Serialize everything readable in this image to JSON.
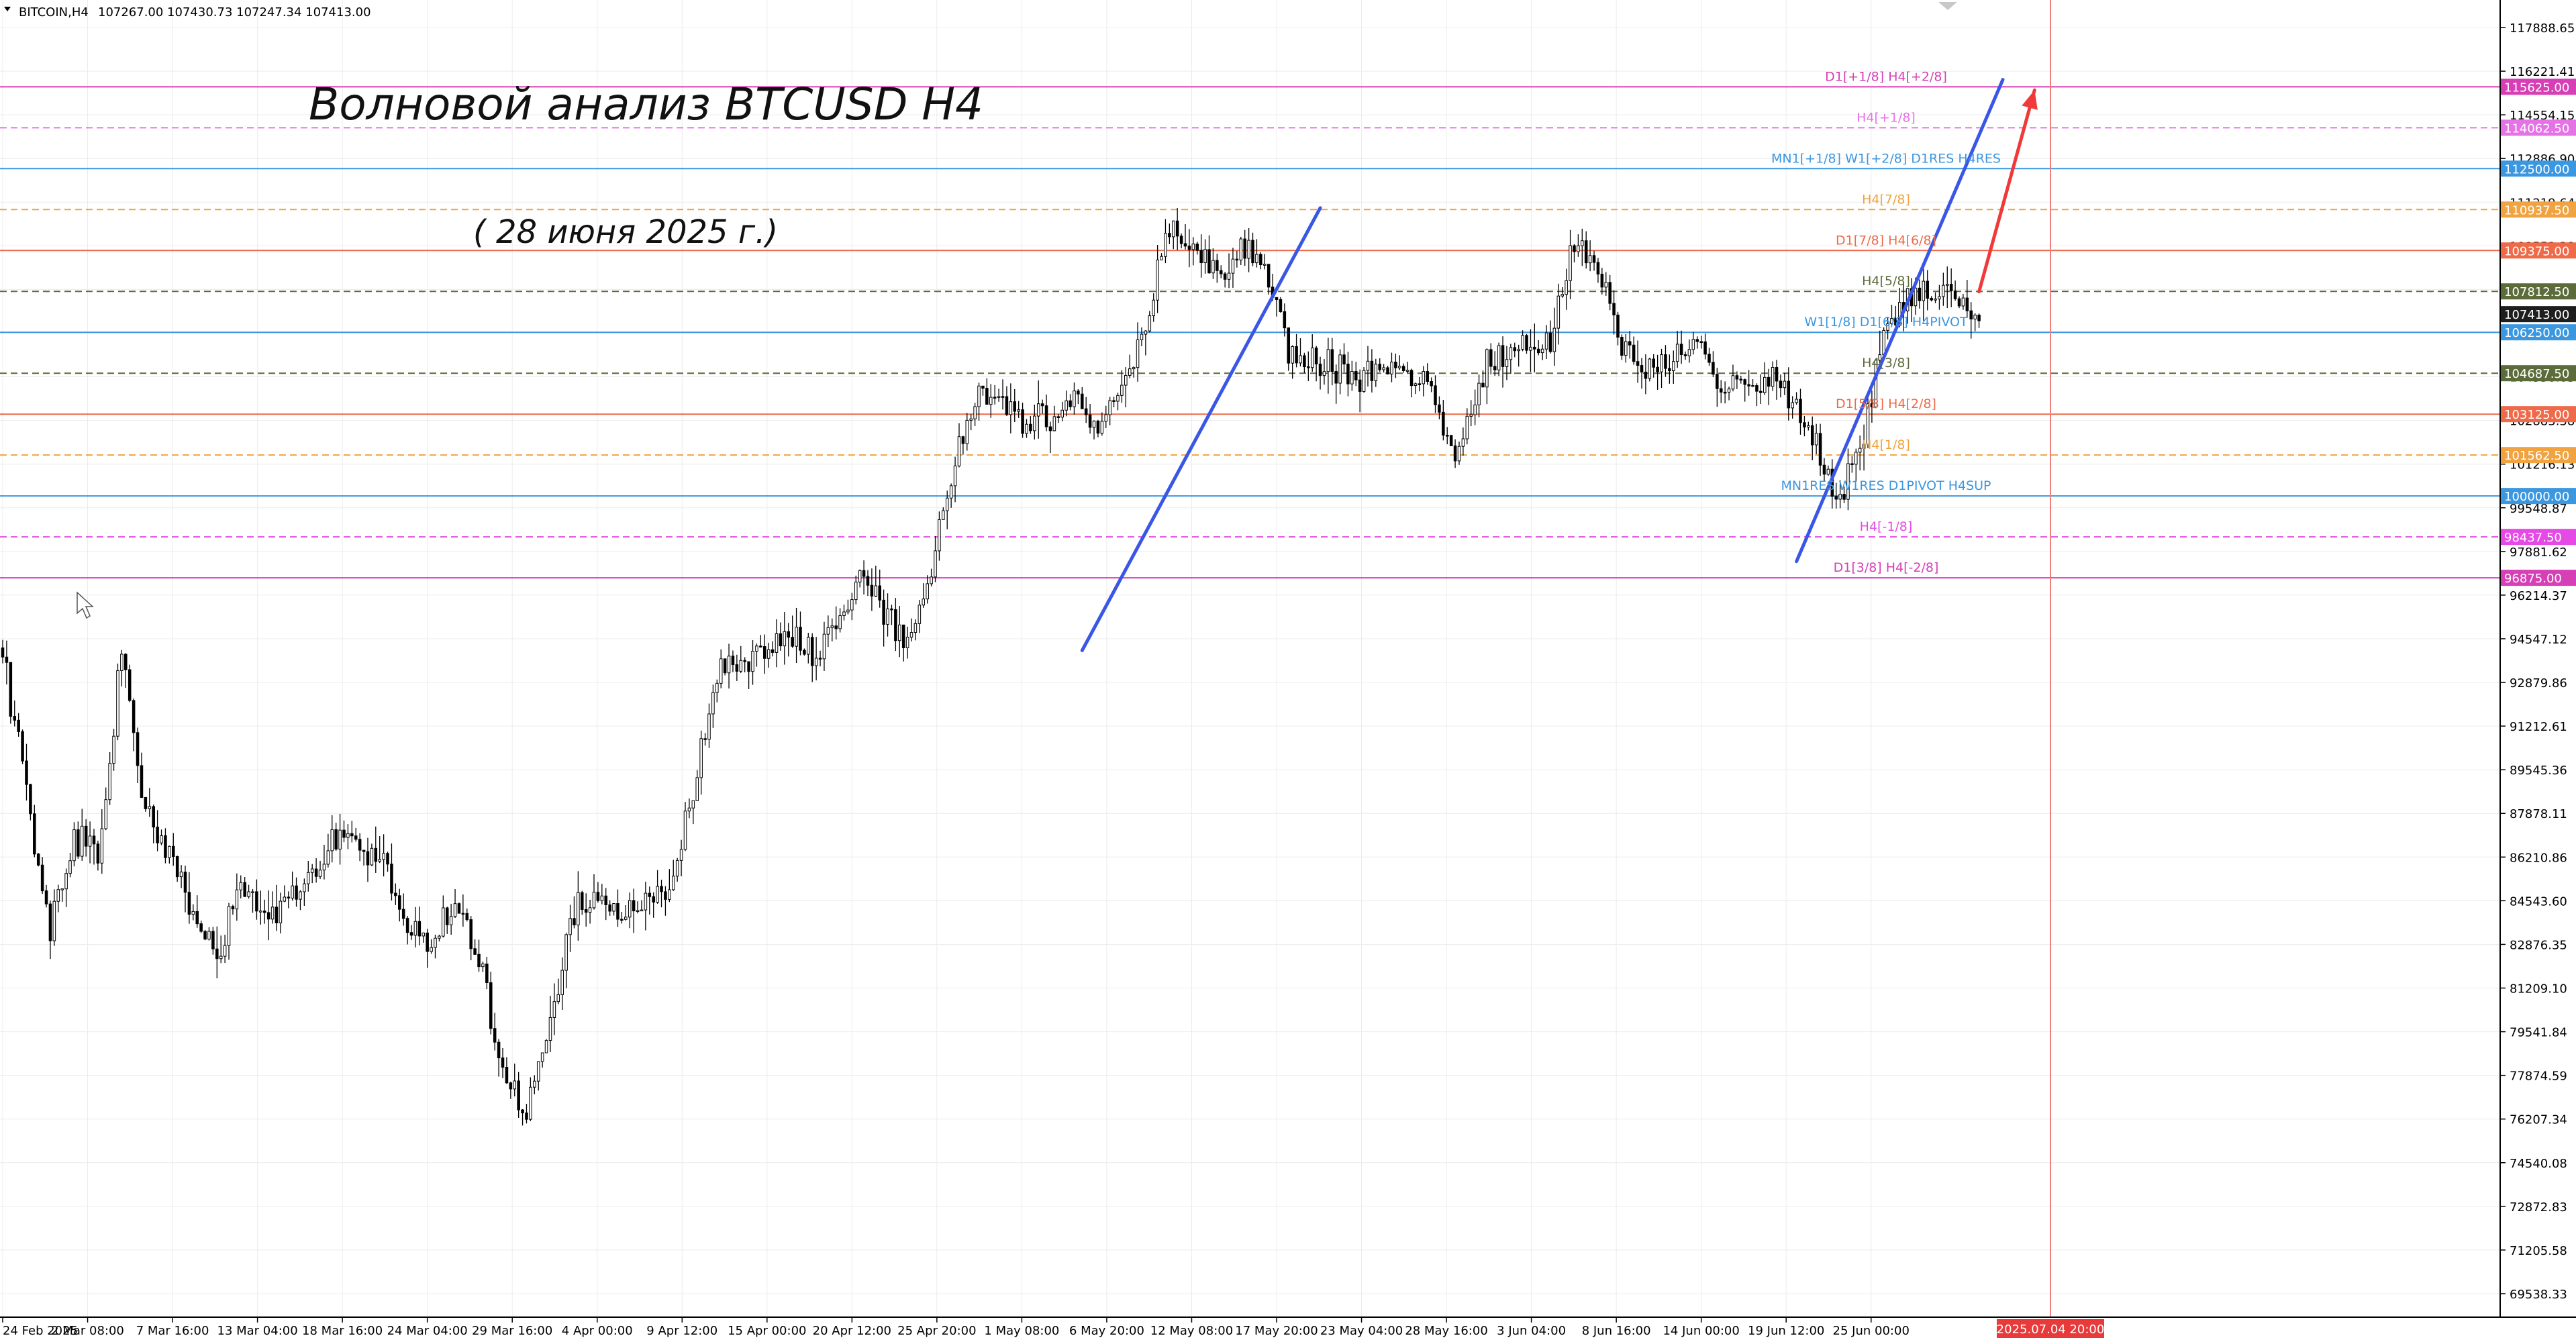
{
  "header": {
    "symbol": "BITCOIN,H4",
    "ohlc": "107267.00 107430.73 107247.34 107413.00",
    "menu_icon": "triangle-down-icon"
  },
  "title": "Волновой анализ BTCUSD H4",
  "subtitle": "( 28 июня 2025 г.)",
  "colors": {
    "background": "#ffffff",
    "grid": "#e6e6e6",
    "candle": "#000000",
    "wave_line": "#3a56e6",
    "forecast_arrow": "#f03a3a",
    "future_vline": "#f08080",
    "future_tag": "#e83a3a"
  },
  "chart_data": {
    "type": "candlestick",
    "grid": true,
    "yticks": [
      "117888.65",
      "116221.41",
      "114554.15",
      "112886.90",
      "111219.64",
      "109552.39",
      "107885.14",
      "106217.89",
      "104550.63",
      "102883.38",
      "101216.13",
      "99548.87",
      "97881.62",
      "96214.37",
      "94547.12",
      "92879.86",
      "91212.61",
      "89545.36",
      "87878.11",
      "86210.86",
      "84543.60",
      "82876.35",
      "81209.10",
      "79541.84",
      "77874.59",
      "76207.34",
      "74540.08",
      "72872.83",
      "71205.58",
      "69538.33"
    ],
    "xticks": [
      "24 Feb 2025",
      "2 Mar 08:00",
      "7 Mar 16:00",
      "13 Mar 04:00",
      "18 Mar 16:00",
      "24 Mar 04:00",
      "29 Mar 16:00",
      "4 Apr 00:00",
      "9 Apr 12:00",
      "15 Apr 00:00",
      "20 Apr 12:00",
      "25 Apr 20:00",
      "1 May 08:00",
      "6 May 20:00",
      "12 May 08:00",
      "17 May 20:00",
      "23 May 04:00",
      "28 May 16:00",
      "3 Jun 04:00",
      "8 Jun 16:00",
      "14 Jun 00:00",
      "19 Jun 12:00",
      "25 Jun 00:00"
    ],
    "future_time_label": "2025.07.04 20:00",
    "price_path": [
      [
        0,
        94200
      ],
      [
        3,
        88500
      ],
      [
        6,
        83500
      ],
      [
        9,
        87000
      ],
      [
        12,
        86200
      ],
      [
        15,
        94000
      ],
      [
        18,
        87800
      ],
      [
        21,
        86000
      ],
      [
        24,
        84200
      ],
      [
        27,
        82500
      ],
      [
        30,
        85000
      ],
      [
        33,
        84000
      ],
      [
        36,
        84500
      ],
      [
        39,
        85500
      ],
      [
        42,
        87000
      ],
      [
        45,
        86500
      ],
      [
        48,
        86000
      ],
      [
        51,
        83500
      ],
      [
        54,
        83000
      ],
      [
        57,
        84600
      ],
      [
        60,
        82500
      ],
      [
        63,
        78000
      ],
      [
        66,
        76200
      ],
      [
        69,
        80200
      ],
      [
        72,
        84200
      ],
      [
        75,
        84700
      ],
      [
        78,
        84100
      ],
      [
        81,
        84400
      ],
      [
        84,
        84600
      ],
      [
        87,
        89000
      ],
      [
        90,
        93300
      ],
      [
        93,
        93800
      ],
      [
        96,
        94000
      ],
      [
        99,
        94500
      ],
      [
        102,
        93900
      ],
      [
        105,
        94800
      ],
      [
        108,
        96800
      ],
      [
        111,
        95500
      ],
      [
        114,
        94300
      ],
      [
        117,
        97300
      ],
      [
        120,
        101500
      ],
      [
        123,
        103800
      ],
      [
        126,
        103500
      ],
      [
        129,
        102500
      ],
      [
        132,
        103200
      ],
      [
        135,
        103600
      ],
      [
        138,
        102800
      ],
      [
        141,
        104300
      ],
      [
        144,
        106500
      ],
      [
        147,
        110500
      ],
      [
        150,
        109800
      ],
      [
        153,
        108400
      ],
      [
        156,
        109600
      ],
      [
        159,
        108600
      ],
      [
        162,
        105600
      ],
      [
        165,
        105200
      ],
      [
        168,
        104800
      ],
      [
        171,
        104600
      ],
      [
        174,
        105200
      ],
      [
        177,
        104400
      ],
      [
        180,
        104200
      ],
      [
        183,
        101000
      ],
      [
        186,
        104500
      ],
      [
        189,
        105600
      ],
      [
        192,
        105800
      ],
      [
        195,
        106000
      ],
      [
        198,
        109500
      ],
      [
        201,
        108400
      ],
      [
        204,
        105800
      ],
      [
        207,
        104800
      ],
      [
        210,
        105400
      ],
      [
        213,
        106200
      ],
      [
        216,
        104500
      ],
      [
        219,
        104300
      ],
      [
        222,
        104600
      ],
      [
        225,
        103800
      ],
      [
        228,
        102500
      ],
      [
        231,
        99500
      ],
      [
        234,
        101800
      ],
      [
        237,
        106200
      ],
      [
        240,
        107300
      ],
      [
        243,
        108000
      ],
      [
        246,
        107500
      ],
      [
        249,
        107200
      ]
    ],
    "levels": [
      {
        "price": 115625.0,
        "price_label": "115625.00",
        "color": "#d63fb5",
        "style": "solid",
        "text": "D1[+1/8] H4[+2/8]"
      },
      {
        "price": 114062.5,
        "price_label": "114062.50",
        "color": "#e673e6",
        "style": "dashed",
        "text": "H4[+1/8]"
      },
      {
        "price": 112500.0,
        "price_label": "112500.00",
        "color": "#3b97e0",
        "style": "solid",
        "text": "MN1[+1/8] W1[+2/8] D1RES H4RES"
      },
      {
        "price": 110937.5,
        "price_label": "110937.50",
        "color": "#f0a340",
        "style": "dashed",
        "text": "H4[7/8]"
      },
      {
        "price": 109375.0,
        "price_label": "109375.00",
        "color": "#ee6a48",
        "style": "solid",
        "text": "D1[7/8] H4[6/8]"
      },
      {
        "price": 107812.5,
        "price_label": "107812.50",
        "color": "#5c6b3a",
        "style": "dashed",
        "text": "H4[5/8]"
      },
      {
        "price": 106250.0,
        "price_label": "106250.00",
        "color": "#3b97e0",
        "style": "solid",
        "text": "W1[1/8] D1[6/8] H4PIVOT"
      },
      {
        "price": 104687.5,
        "price_label": "104687.50",
        "color": "#5c6b3a",
        "style": "dashed",
        "text": "H4[3/8]"
      },
      {
        "price": 103125.0,
        "price_label": "103125.00",
        "color": "#ee6a48",
        "style": "solid",
        "text": "D1[5/8] H4[2/8]"
      },
      {
        "price": 101562.5,
        "price_label": "101562.50",
        "color": "#f0a340",
        "style": "dashed",
        "text": "H4[1/8]"
      },
      {
        "price": 100000.0,
        "price_label": "100000.00",
        "color": "#3b97e0",
        "style": "solid",
        "text": "MN1RES W1RES D1PIVOT H4SUP"
      },
      {
        "price": 98437.5,
        "price_label": "98437.50",
        "color": "#e64ae6",
        "style": "dashed",
        "text": "H4[-1/8]"
      },
      {
        "price": 96875.0,
        "price_label": "96875.00",
        "color": "#d63fb5",
        "style": "solid",
        "text": "D1[3/8] H4[-2/8]"
      }
    ],
    "current_price": {
      "label": "107413.00",
      "color": "#1e1e1e"
    },
    "wave_lines": [
      {
        "from": [
          136,
          94100
        ],
        "to": [
          166,
          111000
        ]
      },
      {
        "from": [
          226,
          97500
        ],
        "to": [
          252,
          115900
        ]
      },
      {
        "from": [
          249,
          107800
        ],
        "to": [
          256,
          115500
        ]
      }
    ]
  }
}
